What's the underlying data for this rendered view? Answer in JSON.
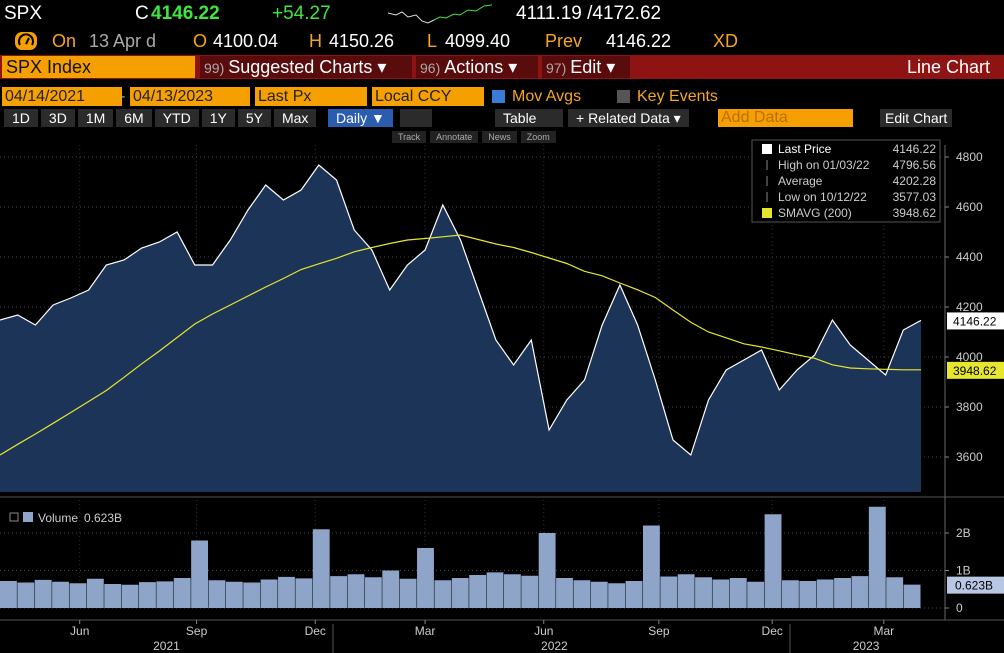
{
  "header": {
    "ticker": "SPX",
    "c_label": "C",
    "last": "4146.22",
    "change": "+54.27",
    "range": "4111.19 /4172.62",
    "on": "On",
    "date": "13 Apr d",
    "o_label": "O",
    "open": "4100.04",
    "h_label": "H",
    "high": "4150.26",
    "l_label": "L",
    "low": "4099.40",
    "prev_label": "Prev",
    "prev": "4146.22",
    "xd": "XD"
  },
  "menu": {
    "security": "SPX Index",
    "items": [
      {
        "code": "99)",
        "label": "Suggested Charts ▾"
      },
      {
        "code": "96)",
        "label": "Actions ▾"
      },
      {
        "code": "97)",
        "label": "Edit ▾"
      }
    ],
    "chart_type": "Line Chart"
  },
  "settings": {
    "start": "04/14/2021",
    "dash": "-",
    "end": "04/13/2023",
    "field": "Last Px",
    "currency": "Local CCY",
    "mov_avgs": "Mov Avgs",
    "key_events": "Key Events"
  },
  "toolbar": {
    "periods": [
      "1D",
      "3D",
      "1M",
      "6M",
      "YTD",
      "1Y",
      "5Y",
      "Max"
    ],
    "frequency": "Daily ▼",
    "table": "Table",
    "related": "+ Related Data ▾",
    "add_data": "Add Data",
    "edit_chart": "Edit Chart",
    "tools": [
      "Track",
      "Annotate",
      "News",
      "Zoom"
    ]
  },
  "chart_data": [
    {
      "type": "line",
      "series": [
        {
          "name": "Last Price",
          "color": "#ffffff",
          "values": [
            4148,
            4168,
            4128,
            4208,
            4236,
            4268,
            4368,
            4388,
            4436,
            4460,
            4500,
            4368,
            4368,
            4468,
            4588,
            4688,
            4628,
            4668,
            4768,
            4708,
            4508,
            4428,
            4268,
            4368,
            4428,
            4608,
            4468,
            4268,
            4068,
            3968,
            4068,
            3708,
            3828,
            3908,
            4128,
            4288,
            4128,
            3908,
            3668,
            3608,
            3828,
            3948,
            3988,
            4028,
            3868,
            3948,
            4008,
            4148,
            4048,
            3988,
            3928,
            4108,
            4146.22
          ]
        },
        {
          "name": "SMAVG (200)",
          "color": "#e6e62e",
          "values": [
            3608,
            3651,
            3692,
            3735,
            3778,
            3822,
            3866,
            3919,
            3973,
            4024,
            4078,
            4132,
            4172,
            4208,
            4244,
            4280,
            4314,
            4350,
            4373,
            4395,
            4421,
            4438,
            4454,
            4468,
            4474,
            4481,
            4488,
            4470,
            4452,
            4438,
            4418,
            4396,
            4374,
            4343,
            4325,
            4296,
            4269,
            4238,
            4188,
            4139,
            4100,
            4077,
            4053,
            4040,
            4025,
            4009,
            3995,
            3969,
            3956,
            3953,
            3951,
            3949,
            3948.62
          ]
        }
      ],
      "stats": [
        {
          "label": "High on 01/03/22",
          "value": 4796.56
        },
        {
          "label": "Average",
          "value": 4202.28
        },
        {
          "label": "Low on 10/12/22",
          "value": 3577.03
        }
      ],
      "xlim": [
        0,
        52
      ],
      "xticks": [
        {
          "value": 4.5,
          "label": "Jun"
        },
        {
          "value": 11.1,
          "label": "Sep"
        },
        {
          "value": 17.8,
          "label": "Dec"
        },
        {
          "value": 24,
          "label": "Mar"
        },
        {
          "value": 30.7,
          "label": "Jun"
        },
        {
          "value": 37.2,
          "label": "Sep"
        },
        {
          "value": 43.6,
          "label": "Dec"
        },
        {
          "value": 49.9,
          "label": "Mar"
        }
      ],
      "year_ticks": [
        {
          "value": 9.4,
          "label": "2021"
        },
        {
          "value": 31.3,
          "label": "2022"
        },
        {
          "value": 48.9,
          "label": "2023"
        }
      ],
      "ylim": [
        3460,
        4848
      ],
      "yticks": [
        3600,
        3800,
        4000,
        4200,
        4400,
        4600,
        4800
      ],
      "grid": true,
      "area_color": "#1c3458"
    },
    {
      "type": "bar",
      "series": [
        {
          "name": "Volume",
          "color": "#8ea4c8",
          "values": [
            0.72,
            0.68,
            0.75,
            0.7,
            0.66,
            0.78,
            0.64,
            0.62,
            0.69,
            0.71,
            0.8,
            1.8,
            0.74,
            0.7,
            0.68,
            0.76,
            0.83,
            0.79,
            2.1,
            0.85,
            0.9,
            0.82,
            1.0,
            0.78,
            1.6,
            0.74,
            0.8,
            0.88,
            0.95,
            0.9,
            0.86,
            2.0,
            0.8,
            0.74,
            0.7,
            0.66,
            0.72,
            2.2,
            0.84,
            0.9,
            0.82,
            0.76,
            0.8,
            0.7,
            2.5,
            0.74,
            0.72,
            0.76,
            0.8,
            0.85,
            2.7,
            0.82,
            0.623
          ]
        }
      ],
      "current": {
        "value": 0.623,
        "label": "0.623B"
      },
      "ylim": [
        0,
        2.88
      ],
      "yticks": [
        0,
        {
          "value": 1,
          "label": "1B"
        },
        {
          "value": 2,
          "label": "2B"
        }
      ],
      "grid": true
    }
  ]
}
